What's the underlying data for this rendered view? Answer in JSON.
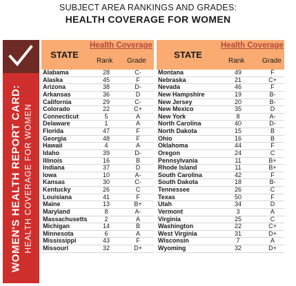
{
  "heading": {
    "line1": "SUBJECT AREA RANKINGS AND GRADES:",
    "line2": "HEALTH COVERAGE FOR WOMEN"
  },
  "sidebar": {
    "title": "WOMEN'S HEALTH REPORT CARD:",
    "subtitle": "HEALTH COVERAGE FOR WOMEN",
    "icon": "checkmark-icon"
  },
  "columns": {
    "state": "STATE",
    "group": "Health Coverage",
    "rank": "Rank",
    "grade": "Grade"
  },
  "left": [
    {
      "state": "Alabama",
      "rank": "28",
      "grade": "C-"
    },
    {
      "state": "Alaska",
      "rank": "45",
      "grade": "F"
    },
    {
      "state": "Arizona",
      "rank": "38",
      "grade": "D-"
    },
    {
      "state": "Arkansas",
      "rank": "36",
      "grade": "D"
    },
    {
      "state": "California",
      "rank": "29",
      "grade": "C-"
    },
    {
      "state": "Colorado",
      "rank": "22",
      "grade": "C+"
    },
    {
      "state": "Connecticut",
      "rank": "5",
      "grade": "A"
    },
    {
      "state": "Delaware",
      "rank": "1",
      "grade": "A"
    },
    {
      "state": "Florida",
      "rank": "47",
      "grade": "F"
    },
    {
      "state": "Georgia",
      "rank": "48",
      "grade": "F"
    },
    {
      "state": "Hawaii",
      "rank": "4",
      "grade": "A"
    },
    {
      "state": "Idaho",
      "rank": "39",
      "grade": "D-"
    },
    {
      "state": "Illinois",
      "rank": "16",
      "grade": "B"
    },
    {
      "state": "Indiana",
      "rank": "37",
      "grade": "D"
    },
    {
      "state": "Iowa",
      "rank": "10",
      "grade": "A-"
    },
    {
      "state": "Kansas",
      "rank": "30",
      "grade": "C-"
    },
    {
      "state": "Kentucky",
      "rank": "26",
      "grade": "C"
    },
    {
      "state": "Louisiana",
      "rank": "41",
      "grade": "F"
    },
    {
      "state": "Maine",
      "rank": "13",
      "grade": "B+"
    },
    {
      "state": "Maryland",
      "rank": "8",
      "grade": "A-"
    },
    {
      "state": "Massachusetts",
      "rank": "2",
      "grade": "A"
    },
    {
      "state": "Michigan",
      "rank": "14",
      "grade": "B"
    },
    {
      "state": "Minnesota",
      "rank": "6",
      "grade": "A"
    },
    {
      "state": "Mississippi",
      "rank": "43",
      "grade": "F"
    },
    {
      "state": "Missouri",
      "rank": "32",
      "grade": "D+"
    }
  ],
  "right": [
    {
      "state": "Montana",
      "rank": "49",
      "grade": "F"
    },
    {
      "state": "Nebraska",
      "rank": "21",
      "grade": "C+"
    },
    {
      "state": "Nevada",
      "rank": "46",
      "grade": "F"
    },
    {
      "state": "New Hampshire",
      "rank": "19",
      "grade": "B-"
    },
    {
      "state": "New Jersey",
      "rank": "20",
      "grade": "B-"
    },
    {
      "state": "New Mexico",
      "rank": "35",
      "grade": "D"
    },
    {
      "state": "New York",
      "rank": "8",
      "grade": "A-"
    },
    {
      "state": "North Carolina",
      "rank": "40",
      "grade": "D-"
    },
    {
      "state": "North Dakota",
      "rank": "15",
      "grade": "B"
    },
    {
      "state": "Ohio",
      "rank": "16",
      "grade": "B"
    },
    {
      "state": "Oklahoma",
      "rank": "44",
      "grade": "F"
    },
    {
      "state": "Oregon",
      "rank": "24",
      "grade": "C"
    },
    {
      "state": "Pennsylvania",
      "rank": "11",
      "grade": "B+"
    },
    {
      "state": "Rhode Island",
      "rank": "11",
      "grade": "B+"
    },
    {
      "state": "South Carolina",
      "rank": "42",
      "grade": "F"
    },
    {
      "state": "South Dakota",
      "rank": "18",
      "grade": "B-"
    },
    {
      "state": "Tennessee",
      "rank": "26",
      "grade": "C"
    },
    {
      "state": "Texas",
      "rank": "50",
      "grade": "F"
    },
    {
      "state": "Utah",
      "rank": "34",
      "grade": "D"
    },
    {
      "state": "Vermont",
      "rank": "3",
      "grade": "A"
    },
    {
      "state": "Virginia",
      "rank": "25",
      "grade": "C"
    },
    {
      "state": "Washington",
      "rank": "22",
      "grade": "C+"
    },
    {
      "state": "West Virginia",
      "rank": "31",
      "grade": "D+"
    },
    {
      "state": "Wisconsin",
      "rank": "7",
      "grade": "A"
    },
    {
      "state": "Wyoming",
      "rank": "32",
      "grade": "D+"
    }
  ],
  "colors": {
    "header_orange": "#f9ab72",
    "sidebar_red": "#cf2f2c",
    "check_bg": "#6e2a25",
    "group_label": "#b5473f"
  }
}
